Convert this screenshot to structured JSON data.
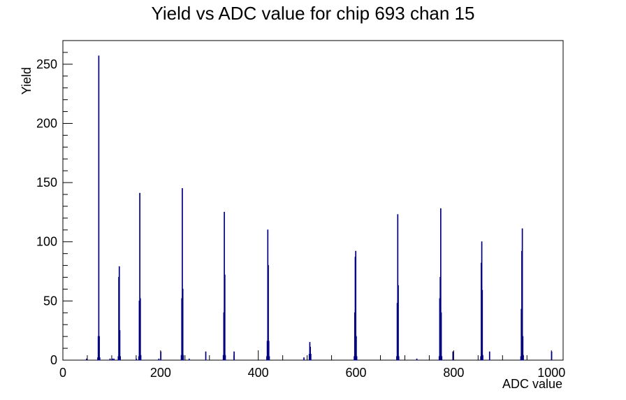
{
  "chart_data": {
    "type": "histogram",
    "title": "Yield vs ADC value for chip 693 chan 15",
    "xlabel": "ADC value",
    "ylabel": "Yield",
    "xlim": [
      0,
      1024
    ],
    "ylim": [
      0,
      270
    ],
    "xticks": [
      0,
      200,
      400,
      600,
      800,
      1000
    ],
    "yticks": [
      0,
      50,
      100,
      150,
      200,
      250
    ],
    "line_color": "#000080",
    "grid": false,
    "legend": "none",
    "series": [
      {
        "bins": [
          [
            48,
            1
          ],
          [
            96,
            1
          ],
          [
            101,
            1
          ],
          [
            104,
            1
          ],
          [
            71,
            2
          ],
          [
            72,
            20
          ],
          [
            73,
            257
          ],
          [
            74,
            20
          ],
          [
            75,
            2
          ],
          [
            113,
            3
          ],
          [
            114,
            70
          ],
          [
            115,
            79
          ],
          [
            116,
            25
          ],
          [
            117,
            3
          ],
          [
            150,
            1
          ],
          [
            155,
            3
          ],
          [
            156,
            50
          ],
          [
            157,
            141
          ],
          [
            158,
            52
          ],
          [
            159,
            4
          ],
          [
            196,
            1
          ],
          [
            200,
            7
          ],
          [
            242,
            4
          ],
          [
            243,
            52
          ],
          [
            244,
            145
          ],
          [
            245,
            60
          ],
          [
            246,
            4
          ],
          [
            258,
            1
          ],
          [
            292,
            7
          ],
          [
            328,
            4
          ],
          [
            329,
            40
          ],
          [
            330,
            125
          ],
          [
            331,
            72
          ],
          [
            332,
            4
          ],
          [
            350,
            7
          ],
          [
            417,
            3
          ],
          [
            418,
            16
          ],
          [
            419,
            110
          ],
          [
            420,
            80
          ],
          [
            421,
            16
          ],
          [
            422,
            3
          ],
          [
            493,
            2
          ],
          [
            504,
            5
          ],
          [
            505,
            15
          ],
          [
            506,
            11
          ],
          [
            507,
            5
          ],
          [
            596,
            3
          ],
          [
            597,
            40
          ],
          [
            598,
            87
          ],
          [
            599,
            92
          ],
          [
            600,
            20
          ],
          [
            601,
            3
          ],
          [
            683,
            3
          ],
          [
            684,
            48
          ],
          [
            685,
            123
          ],
          [
            686,
            63
          ],
          [
            687,
            3
          ],
          [
            724,
            1
          ],
          [
            770,
            3
          ],
          [
            771,
            52
          ],
          [
            772,
            70
          ],
          [
            773,
            128
          ],
          [
            774,
            40
          ],
          [
            775,
            3
          ],
          [
            798,
            7
          ],
          [
            855,
            3
          ],
          [
            856,
            82
          ],
          [
            857,
            100
          ],
          [
            858,
            59
          ],
          [
            859,
            4
          ],
          [
            873,
            7
          ],
          [
            937,
            3
          ],
          [
            938,
            43
          ],
          [
            939,
            92
          ],
          [
            940,
            111
          ],
          [
            941,
            20
          ],
          [
            942,
            4
          ],
          [
            1000,
            7
          ]
        ]
      }
    ]
  }
}
